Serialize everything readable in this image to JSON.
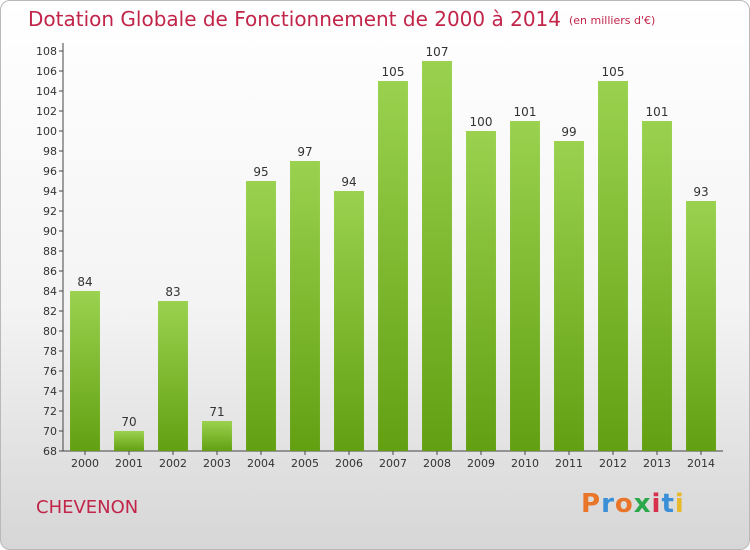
{
  "header": {
    "title": "Dotation Globale de Fonctionnement de 2000 à 2014",
    "unit": "(en milliers d'€)"
  },
  "footer": {
    "commune": "CHEVENON",
    "logo_text": "Proxiti"
  },
  "colors": {
    "title": "#c1254a",
    "bar_top": "#9ad24f",
    "bar_bottom": "#62a012",
    "logo_letters": [
      "#e8752a",
      "#3a8fd6",
      "#e8752a",
      "#2aa84a",
      "#d6304c",
      "#3a8fd6",
      "#e8b92a"
    ]
  },
  "chart_data": {
    "type": "bar",
    "categories": [
      "2000",
      "2001",
      "2002",
      "2003",
      "2004",
      "2005",
      "2006",
      "2007",
      "2008",
      "2009",
      "2010",
      "2011",
      "2012",
      "2013",
      "2014"
    ],
    "values": [
      84,
      70,
      83,
      71,
      95,
      97,
      94,
      105,
      107,
      100,
      101,
      99,
      105,
      101,
      93
    ],
    "ylim": [
      68,
      108
    ],
    "ytick_step": 2,
    "grid": false,
    "data_labels": true
  }
}
